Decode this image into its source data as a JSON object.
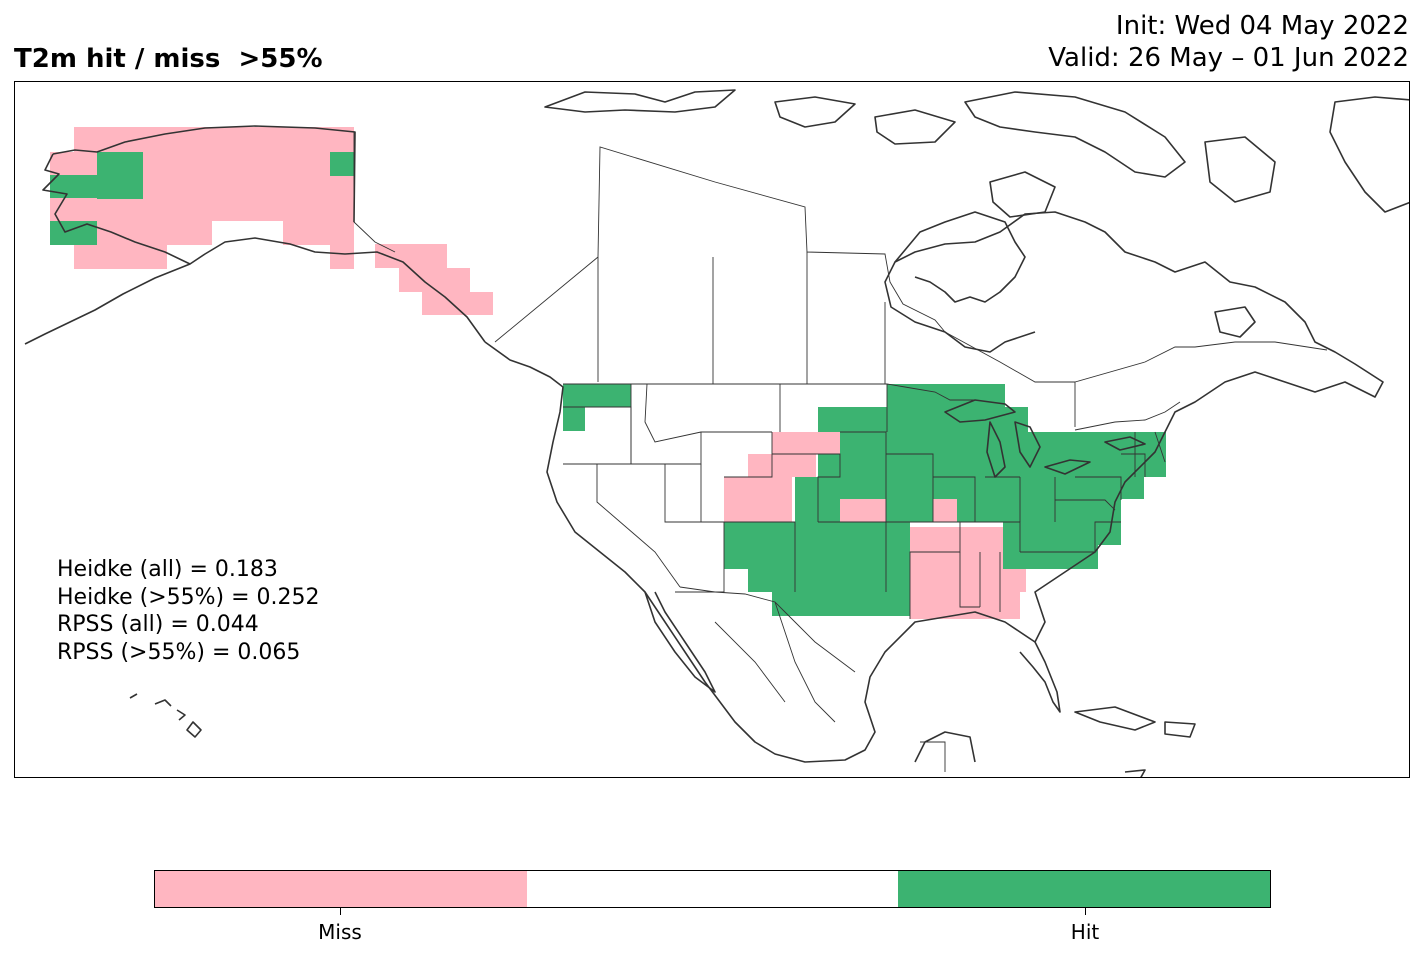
{
  "title": "T2m hit / miss  >55%",
  "init_text": "Init: Wed 04 May 2022",
  "valid_text": "Valid: 26 May – 01 Jun 2022",
  "scores": [
    "Heidke (all) = 0.183",
    "Heidke (>55%) = 0.252",
    "RPSS (all) = 0.044",
    "RPSS (>55%) = 0.065"
  ],
  "colors": {
    "miss": "#ffb6c1",
    "neutral": "#ffffff",
    "hit": "#3cb371",
    "coast": "#333333"
  },
  "legend": {
    "segments": [
      "miss",
      "neutral",
      "hit"
    ],
    "labels": [
      "Miss",
      "Hit"
    ]
  },
  "map": {
    "region": "North America",
    "features": [
      "coastlines",
      "country borders",
      "state/province borders"
    ]
  }
}
